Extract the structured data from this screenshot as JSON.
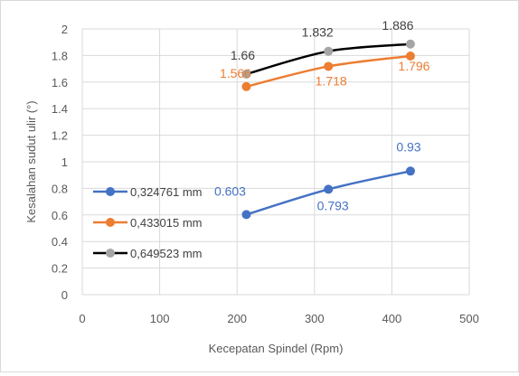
{
  "chart_data": {
    "type": "line",
    "title": "",
    "xlabel": "Kecepatan Spindel (Rpm)",
    "ylabel": "Kesalahan sudut ulir (°)",
    "xlim": [
      0,
      500
    ],
    "ylim": [
      0,
      2
    ],
    "x_ticks": [
      0,
      100,
      200,
      300,
      400,
      500
    ],
    "x_tick_labels": [
      "0",
      "100",
      "200",
      "300",
      "400",
      "500"
    ],
    "y_ticks": [
      0,
      0.2,
      0.4,
      0.6,
      0.8,
      1,
      1.2,
      1.4,
      1.6,
      1.8,
      2
    ],
    "y_tick_labels": [
      "0",
      "0.2",
      "0.4",
      "0.6",
      "0.8",
      "1",
      "1.2",
      "1.4",
      "1.6",
      "1.8",
      "2"
    ],
    "grid": "vertical and horizontal",
    "legend_position": "left",
    "x": [
      212,
      318,
      424
    ],
    "series": [
      {
        "name": "0,324761 mm",
        "color": "#4472c4",
        "line_color": "#4472c4",
        "values": [
          0.603,
          0.793,
          0.93
        ],
        "labels": [
          "0.603",
          "0.793",
          "0.93"
        ]
      },
      {
        "name": "0,433015 mm",
        "color": "#ed7d31",
        "line_color": "#ed7d31",
        "values": [
          1.566,
          1.718,
          1.796
        ],
        "labels": [
          "1.566",
          "1.718",
          "1.796"
        ]
      },
      {
        "name": "0,649523 mm",
        "color": "#a5a5a5",
        "line_color": "#000000",
        "values": [
          1.66,
          1.832,
          1.886
        ],
        "labels": [
          "1.66",
          "1.832",
          "1.886"
        ]
      }
    ]
  }
}
